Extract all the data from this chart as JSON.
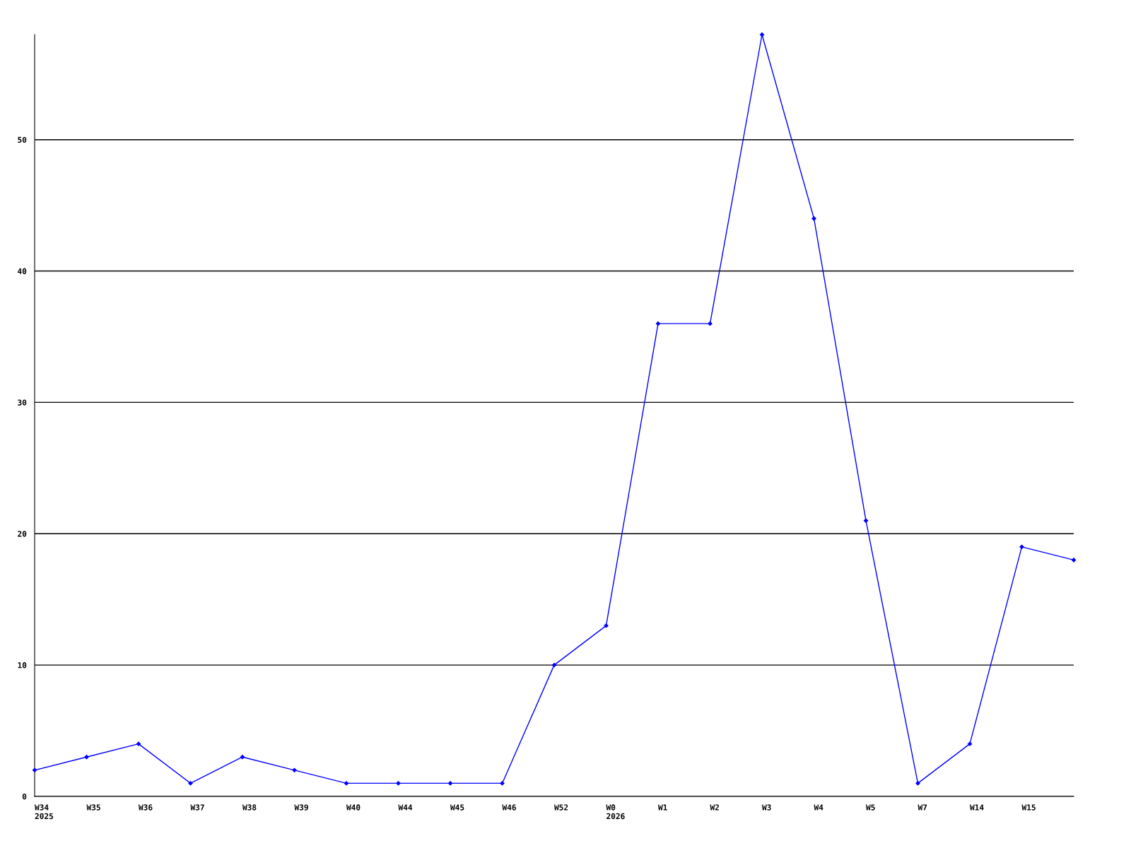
{
  "chart_data": {
    "type": "line",
    "categories": [
      "W34\n2025",
      "W35",
      "W36",
      "W37",
      "W38",
      "W39",
      "W40",
      "W44",
      "W45",
      "W46",
      "W52",
      "W0\n2026",
      "W1",
      "W2",
      "W3",
      "W4",
      "W5",
      "W7",
      "W14",
      "W15",
      null
    ],
    "series": [
      {
        "color": "#0000ff",
        "values": [
          2,
          3,
          4,
          1,
          3,
          2,
          1,
          1,
          1,
          1,
          10,
          13,
          36,
          36,
          58,
          44,
          21,
          1,
          4,
          19,
          18
        ]
      }
    ],
    "ylim": [
      0,
      58
    ],
    "yticks": [
      0,
      10,
      20,
      30,
      40,
      50
    ],
    "grid": "y",
    "marker": "diamond",
    "line_style": "solid",
    "legend": false
  }
}
